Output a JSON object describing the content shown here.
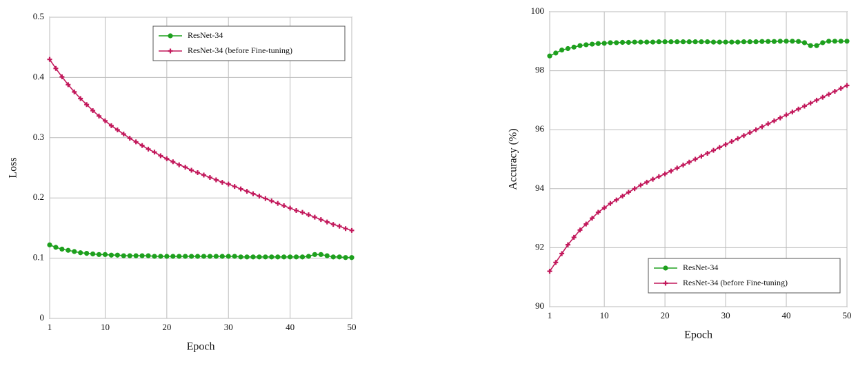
{
  "chart_data": [
    {
      "type": "line",
      "ylabel": "Loss",
      "xlabel": "Epoch",
      "x": [
        1,
        2,
        3,
        4,
        5,
        6,
        7,
        8,
        9,
        10,
        11,
        12,
        13,
        14,
        15,
        16,
        17,
        18,
        19,
        20,
        21,
        22,
        23,
        24,
        25,
        26,
        27,
        28,
        29,
        30,
        31,
        32,
        33,
        34,
        35,
        36,
        37,
        38,
        39,
        40,
        41,
        42,
        43,
        44,
        45,
        46,
        47,
        48,
        49,
        50
      ],
      "xlim": [
        1,
        50
      ],
      "xticks": [
        1,
        10,
        20,
        30,
        40,
        50
      ],
      "ylim": [
        0,
        0.5
      ],
      "yticks": [
        0,
        0.1,
        0.2,
        0.3,
        0.4,
        0.5
      ],
      "grid": true,
      "legend": "upper right",
      "series": [
        {
          "name": "ResNet-34",
          "color": "#1ea01e",
          "marker": "circle",
          "values": [
            0.122,
            0.118,
            0.115,
            0.113,
            0.111,
            0.109,
            0.108,
            0.107,
            0.106,
            0.106,
            0.105,
            0.105,
            0.104,
            0.104,
            0.104,
            0.104,
            0.104,
            0.103,
            0.103,
            0.103,
            0.103,
            0.103,
            0.103,
            0.103,
            0.103,
            0.103,
            0.103,
            0.103,
            0.103,
            0.103,
            0.103,
            0.102,
            0.102,
            0.102,
            0.102,
            0.102,
            0.102,
            0.102,
            0.102,
            0.102,
            0.102,
            0.102,
            0.103,
            0.106,
            0.106,
            0.104,
            0.102,
            0.102,
            0.101,
            0.101
          ]
        },
        {
          "name": "ResNet-34 (before Fine-tuning)",
          "color": "#c2185b",
          "marker": "plus",
          "values": [
            0.43,
            0.415,
            0.401,
            0.388,
            0.376,
            0.365,
            0.355,
            0.345,
            0.336,
            0.328,
            0.32,
            0.313,
            0.306,
            0.299,
            0.293,
            0.287,
            0.281,
            0.276,
            0.27,
            0.265,
            0.26,
            0.255,
            0.251,
            0.246,
            0.242,
            0.238,
            0.234,
            0.23,
            0.226,
            0.223,
            0.219,
            0.215,
            0.211,
            0.207,
            0.203,
            0.199,
            0.195,
            0.191,
            0.187,
            0.183,
            0.179,
            0.176,
            0.172,
            0.168,
            0.164,
            0.16,
            0.156,
            0.153,
            0.149,
            0.146
          ]
        }
      ]
    },
    {
      "type": "line",
      "ylabel": "Accuracy (%)",
      "xlabel": "Epoch",
      "x": [
        1,
        2,
        3,
        4,
        5,
        6,
        7,
        8,
        9,
        10,
        11,
        12,
        13,
        14,
        15,
        16,
        17,
        18,
        19,
        20,
        21,
        22,
        23,
        24,
        25,
        26,
        27,
        28,
        29,
        30,
        31,
        32,
        33,
        34,
        35,
        36,
        37,
        38,
        39,
        40,
        41,
        42,
        43,
        44,
        45,
        46,
        47,
        48,
        49,
        50
      ],
      "xlim": [
        1,
        50
      ],
      "xticks": [
        1,
        10,
        20,
        30,
        40,
        50
      ],
      "ylim": [
        90,
        100
      ],
      "yticks": [
        90,
        92,
        94,
        96,
        98,
        100
      ],
      "grid": true,
      "legend": "lower right",
      "series": [
        {
          "name": "ResNet-34",
          "color": "#1ea01e",
          "marker": "circle",
          "values": [
            98.5,
            98.6,
            98.7,
            98.75,
            98.8,
            98.85,
            98.88,
            98.9,
            98.92,
            98.93,
            98.95,
            98.95,
            98.96,
            98.96,
            98.97,
            98.97,
            98.97,
            98.97,
            98.98,
            98.98,
            98.98,
            98.98,
            98.98,
            98.98,
            98.98,
            98.98,
            98.98,
            98.97,
            98.97,
            98.97,
            98.97,
            98.97,
            98.98,
            98.98,
            98.98,
            98.99,
            98.99,
            98.99,
            99.0,
            99.0,
            99.0,
            98.99,
            98.95,
            98.85,
            98.85,
            98.95,
            99.0,
            99.0,
            99.0,
            99.0
          ]
        },
        {
          "name": "ResNet-34 (before Fine-tuning)",
          "color": "#c2185b",
          "marker": "plus",
          "values": [
            91.2,
            91.5,
            91.8,
            92.1,
            92.35,
            92.6,
            92.8,
            93.0,
            93.2,
            93.35,
            93.5,
            93.62,
            93.75,
            93.88,
            94.0,
            94.12,
            94.22,
            94.32,
            94.41,
            94.5,
            94.6,
            94.7,
            94.8,
            94.9,
            95.0,
            95.1,
            95.2,
            95.3,
            95.4,
            95.5,
            95.6,
            95.7,
            95.8,
            95.9,
            96.0,
            96.1,
            96.2,
            96.3,
            96.4,
            96.5,
            96.6,
            96.7,
            96.8,
            96.9,
            97.0,
            97.1,
            97.2,
            97.3,
            97.4,
            97.5
          ]
        }
      ]
    }
  ]
}
